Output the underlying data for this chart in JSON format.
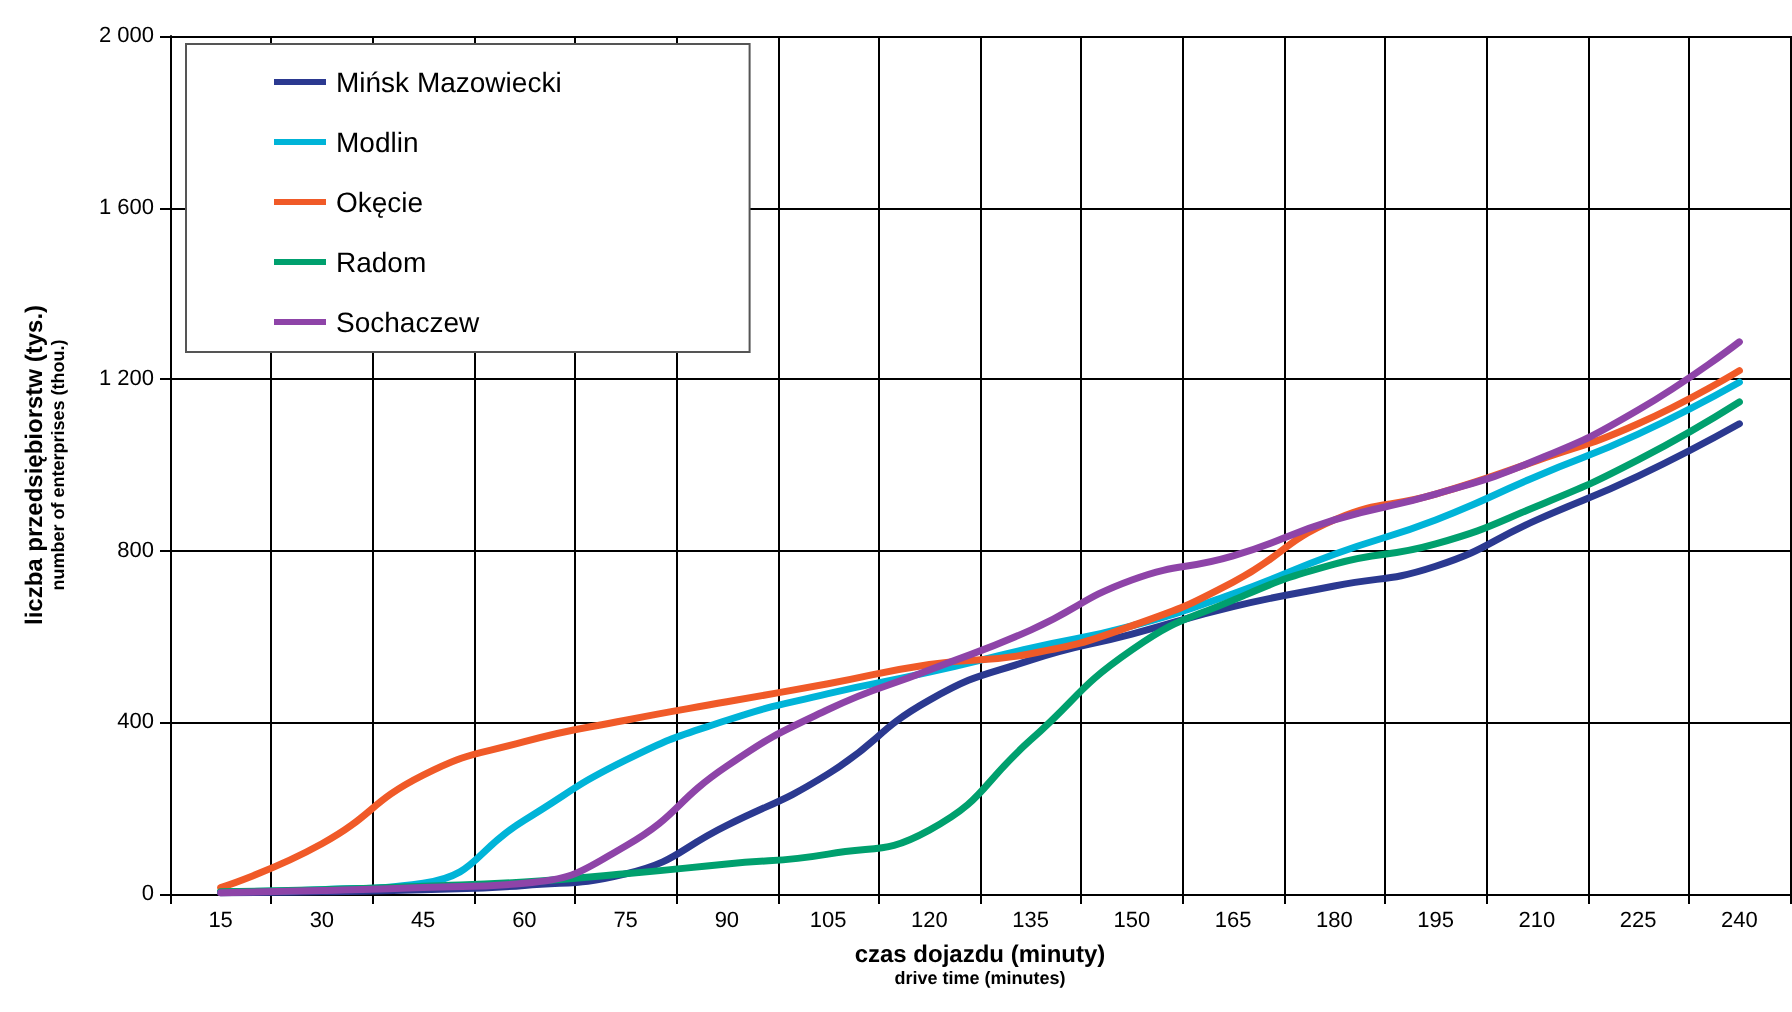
{
  "chart_data": {
    "type": "line",
    "xlabel": "czas dojazdu (minuty)\ndrive time (minutes)",
    "ylabel": "liczba przedsiębiorstw (tys.)\nnumber of enterprises (thou.)",
    "categories": [
      "15",
      "30",
      "45",
      "60",
      "75",
      "90",
      "105",
      "120",
      "135",
      "150",
      "165",
      "180",
      "195",
      "210",
      "225",
      "240"
    ],
    "ylim": [
      0,
      2000
    ],
    "yticks": [
      0,
      {
        "value": 400,
        "label": "400"
      },
      {
        "value": 800,
        "label": "800"
      },
      {
        "value": 1200,
        "label": "1 200"
      },
      {
        "value": 1600,
        "label": "1 600"
      },
      {
        "value": 2000,
        "label": "2 000"
      }
    ],
    "grid": true,
    "legend": "top left",
    "marker": "none",
    "line_style": "solid",
    "series": [
      {
        "name": "Mińsk Mazowiecki",
        "color": "#2b3990",
        "values": [
          3,
          5,
          10,
          20,
          47,
          160,
          280,
          452,
          545,
          606,
          670,
          718,
          764,
          872,
          974,
          1096
        ]
      },
      {
        "name": "Modlin",
        "color": "#00b4d8",
        "values": [
          5,
          10,
          25,
          172,
          312,
          405,
          467,
          517,
          573,
          625,
          700,
          792,
          872,
          974,
          1072,
          1193
        ]
      },
      {
        "name": "Okęcie",
        "color": "#f05a28",
        "values": [
          15,
          117,
          277,
          355,
          405,
          448,
          490,
          535,
          560,
          625,
          727,
          872,
          932,
          1010,
          1096,
          1220
        ]
      },
      {
        "name": "Radom",
        "color": "#00a06e",
        "values": [
          5,
          10,
          18,
          28,
          47,
          70,
          93,
          149,
          359,
          569,
          685,
          769,
          816,
          904,
          1012,
          1147
        ]
      },
      {
        "name": "Sochaczew",
        "color": "#8e44a8",
        "values": [
          3,
          8,
          15,
          25,
          112,
          298,
          430,
          522,
          615,
          732,
          788,
          872,
          932,
          1012,
          1128,
          1287
        ]
      }
    ]
  }
}
